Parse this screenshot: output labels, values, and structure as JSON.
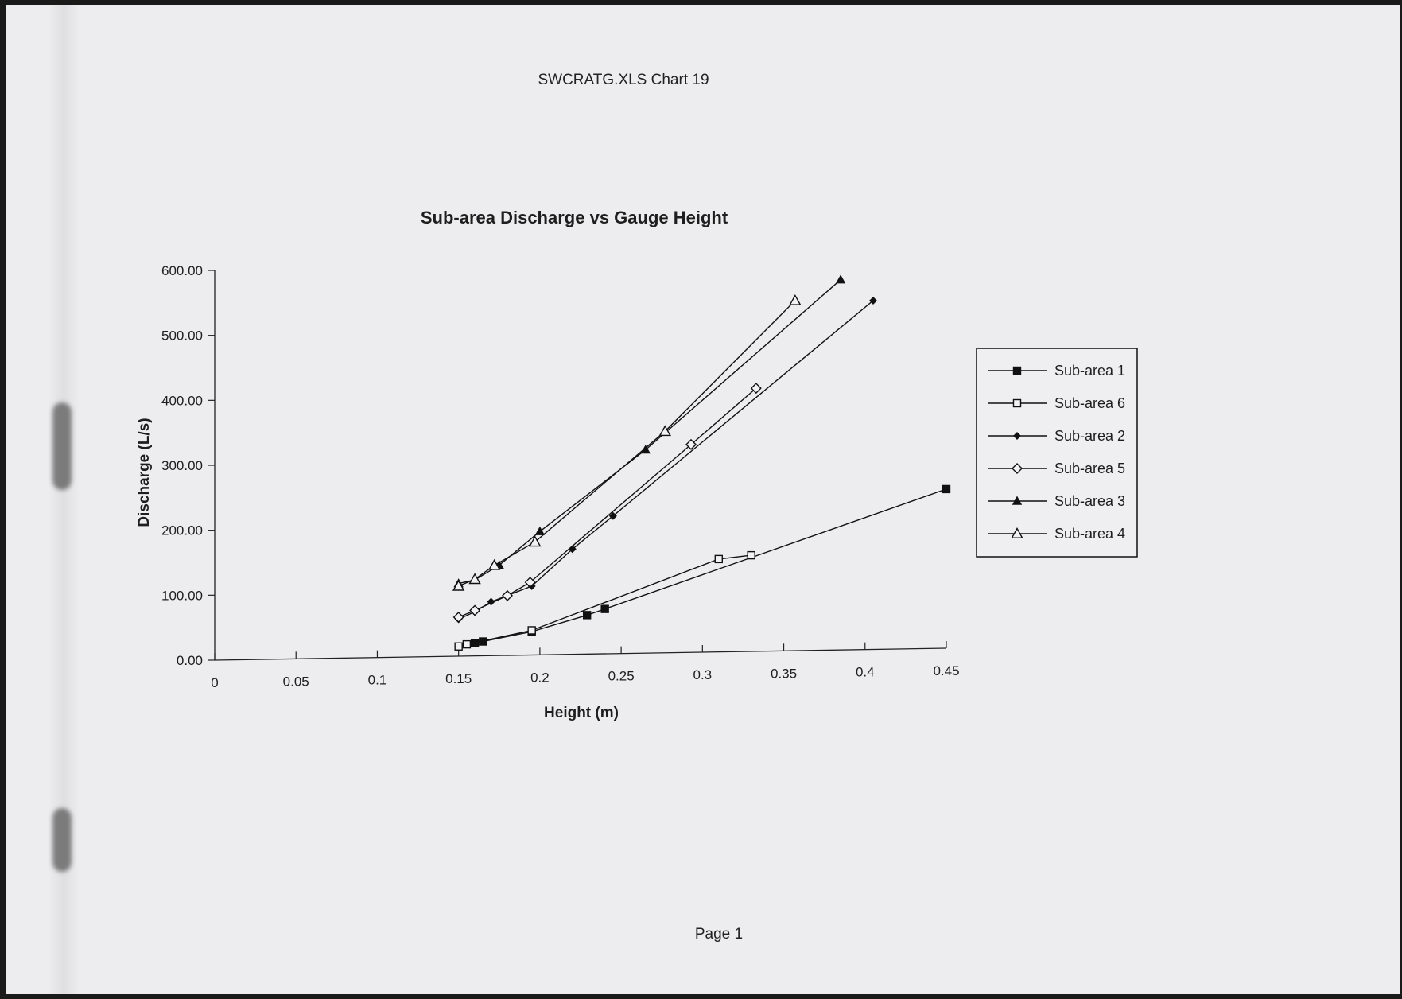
{
  "header": {
    "text": "SWCRATG.XLS Chart 19"
  },
  "footer": {
    "text": "Page 1"
  },
  "chart_data": {
    "type": "line",
    "title": "Sub-area Discharge vs Gauge Height",
    "xlabel": "Height (m)",
    "ylabel": "Discharge (L/s)",
    "xlim": [
      0,
      0.45
    ],
    "ylim": [
      0,
      600
    ],
    "xticks": [
      0,
      0.05,
      0.1,
      0.15,
      0.2,
      0.25,
      0.3,
      0.35,
      0.4,
      0.45
    ],
    "xtick_labels": [
      "0",
      "0.05",
      "0.1",
      "0.15",
      "0.2",
      "0.25",
      "0.3",
      "0.35",
      "0.4",
      "0.45"
    ],
    "yticks": [
      0,
      100,
      200,
      300,
      400,
      500,
      600
    ],
    "ytick_labels": [
      "0.00",
      "100.00",
      "200.00",
      "300.00",
      "400.00",
      "500.00",
      "600.00"
    ],
    "grid": false,
    "legend_position": "right",
    "series": [
      {
        "name": "Sub-area 1",
        "marker": "filled-square",
        "x": [
          0.16,
          0.165,
          0.195,
          0.229,
          0.24,
          0.45
        ],
        "y": [
          20,
          22,
          36,
          60,
          69,
          245
        ]
      },
      {
        "name": "Sub-area 6",
        "marker": "open-square",
        "x": [
          0.15,
          0.155,
          0.195,
          0.31,
          0.33
        ],
        "y": [
          15,
          18,
          38,
          143,
          148
        ]
      },
      {
        "name": "Sub-area 2",
        "marker": "filled-diamond",
        "x": [
          0.15,
          0.16,
          0.17,
          0.195,
          0.22,
          0.245,
          0.405
        ],
        "y": [
          57,
          68,
          83,
          106,
          162,
          212,
          537
        ]
      },
      {
        "name": "Sub-area 5",
        "marker": "open-diamond",
        "x": [
          0.15,
          0.16,
          0.18,
          0.194,
          0.293,
          0.333
        ],
        "y": [
          60,
          70,
          92,
          112,
          320,
          405
        ]
      },
      {
        "name": "Sub-area 3",
        "marker": "filled-triangle",
        "x": [
          0.15,
          0.16,
          0.175,
          0.2,
          0.265,
          0.385
        ],
        "y": [
          112,
          117,
          139,
          190,
          313,
          570
        ]
      },
      {
        "name": "Sub-area 4",
        "marker": "open-triangle",
        "x": [
          0.15,
          0.16,
          0.172,
          0.197,
          0.277,
          0.357
        ],
        "y": [
          108,
          118,
          139,
          174,
          341,
          539
        ]
      }
    ]
  }
}
